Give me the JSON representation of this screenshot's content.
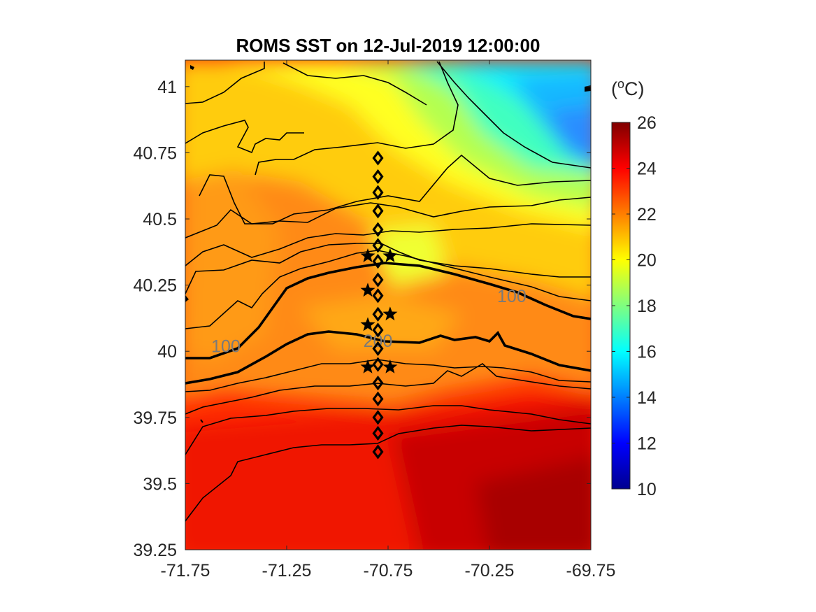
{
  "chart_data": {
    "type": "heatmap",
    "title": "ROMS SST on 12-Jul-2019 12:00:00",
    "xlim": [
      -71.75,
      -69.75
    ],
    "ylim": [
      39.25,
      41.1
    ],
    "xticks": [
      "-71.75",
      "-71.25",
      "-70.75",
      "-70.25",
      "-69.75"
    ],
    "yticks": [
      "39.25",
      "39.5",
      "39.75",
      "40",
      "40.25",
      "40.5",
      "40.75",
      "41"
    ],
    "xtick_values": [
      -71.75,
      -71.25,
      -70.75,
      -70.25,
      -69.75
    ],
    "ytick_values": [
      39.25,
      39.5,
      39.75,
      40,
      40.25,
      40.5,
      40.75,
      41
    ],
    "colorbar": {
      "unit_prefix": "(",
      "unit_super": "o",
      "unit_suffix": "C)",
      "range": [
        10,
        26
      ],
      "ticks": [
        "10",
        "12",
        "14",
        "16",
        "18",
        "20",
        "22",
        "24",
        "26"
      ],
      "tick_values": [
        10,
        12,
        14,
        16,
        18,
        20,
        22,
        24,
        26
      ],
      "colormap": "jet"
    },
    "contour_labels": [
      {
        "text": "100",
        "lon": -71.55,
        "lat": 40.02
      },
      {
        "text": "100",
        "lon": -70.14,
        "lat": 40.21
      },
      {
        "text": "200",
        "lon": -70.8,
        "lat": 40.04
      }
    ],
    "diamond_stations": {
      "lon": -70.8,
      "lat": [
        40.73,
        40.66,
        40.6,
        40.53,
        40.46,
        40.4,
        40.34,
        40.27,
        40.21,
        40.14,
        40.08,
        40.01,
        39.95,
        39.88,
        39.82,
        39.75,
        39.69,
        39.62
      ]
    },
    "star_stations": [
      {
        "lon": -70.85,
        "lat": 40.36
      },
      {
        "lon": -70.74,
        "lat": 40.36
      },
      {
        "lon": -70.85,
        "lat": 40.23
      },
      {
        "lon": -70.74,
        "lat": 40.14
      },
      {
        "lon": -70.85,
        "lat": 40.1
      },
      {
        "lon": -70.85,
        "lat": 39.94
      },
      {
        "lon": -70.74,
        "lat": 39.94
      }
    ],
    "colors": {
      "coast": "#000000",
      "contour": "#000000",
      "marker": "#000000"
    }
  }
}
